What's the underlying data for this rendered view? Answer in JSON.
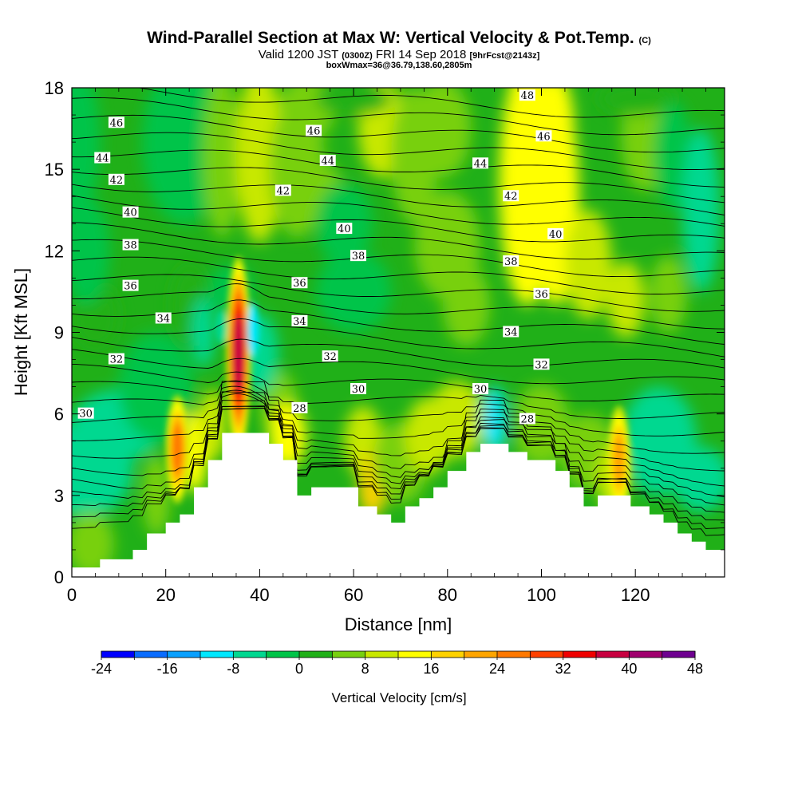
{
  "header": {
    "title": "Wind-Parallel Section at Max W: Vertical Velocity & Pot.Temp.",
    "title_mark": "(C)",
    "valid_prefix": "Valid 1200 JST",
    "valid_zulu": "(0300Z)",
    "valid_date": "FRI 14 Sep 2018",
    "forecast": "[9hrFcst@2143z]",
    "box_info": "boxWmax=36@36.79,138.60,2805m"
  },
  "chart_data": {
    "type": "heatmap",
    "title": "Wind-Parallel Section at Max W: Vertical Velocity & Pot.Temp.",
    "xlabel": "Distance [nm]",
    "ylabel": "Height [Kft MSL]",
    "xlim": [
      0,
      139
    ],
    "ylim": [
      0,
      18
    ],
    "xticks": [
      0,
      20,
      40,
      60,
      80,
      100,
      120
    ],
    "yticks": [
      0,
      3,
      6,
      9,
      12,
      15,
      18
    ],
    "colorbar": {
      "label": "Vertical Velocity [cm/s]",
      "min": -24,
      "max": 48,
      "step": 4,
      "tick_labels": [
        "-24",
        "-16",
        "-8",
        "0",
        "8",
        "16",
        "24",
        "32",
        "40",
        "48"
      ],
      "colors": [
        "#0000ff",
        "#0a6cff",
        "#0aa0ff",
        "#00e8ff",
        "#00d890",
        "#00c448",
        "#20b018",
        "#78d010",
        "#c8e800",
        "#ffff00",
        "#ffd200",
        "#ffa500",
        "#ff7800",
        "#ff4000",
        "#f00000",
        "#c80040",
        "#a0006e",
        "#6e0090"
      ]
    },
    "terrain": [
      [
        0,
        0.35
      ],
      [
        6,
        0.35
      ],
      [
        6,
        0.65
      ],
      [
        13,
        0.65
      ],
      [
        13,
        1.0
      ],
      [
        16,
        1.0
      ],
      [
        16,
        1.6
      ],
      [
        20,
        1.6
      ],
      [
        20,
        2.0
      ],
      [
        23,
        2.0
      ],
      [
        23,
        2.3
      ],
      [
        26,
        2.3
      ],
      [
        26,
        3.3
      ],
      [
        29,
        3.3
      ],
      [
        29,
        4.3
      ],
      [
        32,
        4.3
      ],
      [
        32,
        5.3
      ],
      [
        42,
        5.3
      ],
      [
        42,
        4.9
      ],
      [
        45,
        4.9
      ],
      [
        45,
        4.3
      ],
      [
        48,
        4.3
      ],
      [
        48,
        3.0
      ],
      [
        51,
        3.0
      ],
      [
        51,
        3.3
      ],
      [
        61,
        3.3
      ],
      [
        61,
        2.6
      ],
      [
        65,
        2.6
      ],
      [
        65,
        2.3
      ],
      [
        68,
        2.3
      ],
      [
        68,
        2.0
      ],
      [
        71,
        2.0
      ],
      [
        71,
        2.6
      ],
      [
        74,
        2.6
      ],
      [
        74,
        2.9
      ],
      [
        77,
        2.9
      ],
      [
        77,
        3.3
      ],
      [
        80,
        3.3
      ],
      [
        80,
        3.9
      ],
      [
        84,
        3.9
      ],
      [
        84,
        4.6
      ],
      [
        87,
        4.6
      ],
      [
        87,
        4.9
      ],
      [
        93,
        4.9
      ],
      [
        93,
        4.6
      ],
      [
        97,
        4.6
      ],
      [
        97,
        4.3
      ],
      [
        103,
        4.3
      ],
      [
        103,
        3.9
      ],
      [
        106,
        3.9
      ],
      [
        106,
        3.3
      ],
      [
        109,
        3.3
      ],
      [
        109,
        2.6
      ],
      [
        112,
        2.6
      ],
      [
        112,
        3.0
      ],
      [
        119,
        3.0
      ],
      [
        119,
        2.6
      ],
      [
        123,
        2.6
      ],
      [
        123,
        2.3
      ],
      [
        126,
        2.3
      ],
      [
        126,
        2.0
      ],
      [
        129,
        2.0
      ],
      [
        129,
        1.6
      ],
      [
        132,
        1.6
      ],
      [
        132,
        1.3
      ],
      [
        135,
        1.3
      ],
      [
        135,
        1.0
      ],
      [
        139,
        1.0
      ]
    ],
    "updraft_cores": [
      {
        "x": 35.5,
        "y": 8.2,
        "w_max": 36
      },
      {
        "x": 22.5,
        "y": 4.7,
        "w_max": 24
      },
      {
        "x": 116.5,
        "y": 4.3,
        "w_max": 20
      }
    ],
    "isentrope_labels": [
      {
        "value": "48",
        "x": 97,
        "y": 17.7
      },
      {
        "value": "46",
        "x": 9.5,
        "y": 16.7
      },
      {
        "value": "46",
        "x": 51.5,
        "y": 16.4
      },
      {
        "value": "46",
        "x": 100.5,
        "y": 16.2
      },
      {
        "value": "44",
        "x": 6.5,
        "y": 15.4
      },
      {
        "value": "44",
        "x": 54.5,
        "y": 15.3
      },
      {
        "value": "44",
        "x": 87,
        "y": 15.2
      },
      {
        "value": "42",
        "x": 9.5,
        "y": 14.6
      },
      {
        "value": "42",
        "x": 45,
        "y": 14.2
      },
      {
        "value": "42",
        "x": 93.5,
        "y": 14.0
      },
      {
        "value": "40",
        "x": 12.5,
        "y": 13.4
      },
      {
        "value": "40",
        "x": 58,
        "y": 12.8
      },
      {
        "value": "40",
        "x": 103,
        "y": 12.6
      },
      {
        "value": "38",
        "x": 12.5,
        "y": 12.2
      },
      {
        "value": "38",
        "x": 61,
        "y": 11.8
      },
      {
        "value": "38",
        "x": 93.5,
        "y": 11.6
      },
      {
        "value": "36",
        "x": 12.5,
        "y": 10.7
      },
      {
        "value": "36",
        "x": 48.5,
        "y": 10.8
      },
      {
        "value": "36",
        "x": 100,
        "y": 10.4
      },
      {
        "value": "34",
        "x": 19.5,
        "y": 9.5
      },
      {
        "value": "34",
        "x": 48.5,
        "y": 9.4
      },
      {
        "value": "34",
        "x": 93.5,
        "y": 9.0
      },
      {
        "value": "32",
        "x": 9.5,
        "y": 8.0
      },
      {
        "value": "32",
        "x": 55,
        "y": 8.1
      },
      {
        "value": "32",
        "x": 100,
        "y": 7.8
      },
      {
        "value": "30",
        "x": 3,
        "y": 6.0
      },
      {
        "value": "30",
        "x": 61,
        "y": 6.9
      },
      {
        "value": "30",
        "x": 87,
        "y": 6.9
      },
      {
        "value": "28",
        "x": 48.5,
        "y": 6.2
      },
      {
        "value": "28",
        "x": 97,
        "y": 5.8
      }
    ]
  }
}
